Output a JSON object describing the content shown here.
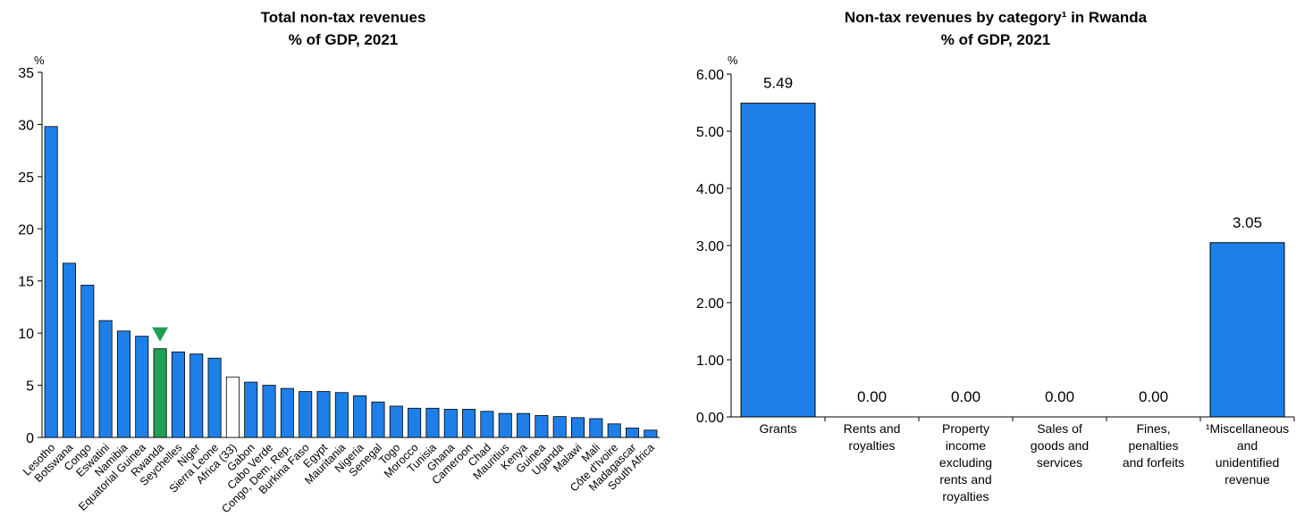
{
  "chart_data": [
    {
      "type": "bar",
      "title": "Total non-tax revenues",
      "subtitle": "% of GDP, 2021",
      "unit_label": "%",
      "ylim": [
        0,
        35
      ],
      "yticks": [
        "0",
        "5",
        "10",
        "15",
        "20",
        "25",
        "30",
        "35"
      ],
      "categories": [
        "Lesotho",
        "Botswana",
        "Congo",
        "Eswatini",
        "Namibia",
        "Equatorial Guinea",
        "Rwanda",
        "Seychelles",
        "Niger",
        "Sierra Leone",
        "Africa (33)",
        "Gabon",
        "Cabo Verde",
        "Congo, Dem. Rep.",
        "Burkina Faso",
        "Egypt",
        "Mauritania",
        "Nigeria",
        "Senegal",
        "Togo",
        "Morocco",
        "Tunisia",
        "Ghana",
        "Cameroon",
        "Chad",
        "Mauritius",
        "Kenya",
        "Guinea",
        "Uganda",
        "Malawi",
        "Mali",
        "Côte d'Ivoire",
        "Madagascar",
        "South Africa"
      ],
      "values": [
        29.8,
        16.7,
        14.6,
        11.2,
        10.2,
        9.7,
        8.5,
        8.2,
        8.0,
        7.6,
        5.8,
        5.3,
        5.0,
        4.7,
        4.4,
        4.4,
        4.3,
        4.0,
        3.4,
        3.0,
        2.8,
        2.8,
        2.7,
        2.7,
        2.5,
        2.3,
        2.3,
        2.1,
        2.0,
        1.9,
        1.8,
        1.3,
        0.9,
        0.7
      ],
      "highlight": "Rwanda",
      "average": "Africa (33)",
      "colors": {
        "default": "#1e7fe8",
        "highlight": "#1fa054",
        "average": "#ffffff",
        "border": "#000000",
        "marker": "#1fa054"
      },
      "grid": false
    },
    {
      "type": "bar",
      "title": "Non-tax revenues by category¹ in Rwanda",
      "subtitle": "% of GDP, 2021",
      "unit_label": "%",
      "ylim": [
        0,
        6
      ],
      "yticks": [
        "0.00",
        "1.00",
        "2.00",
        "3.00",
        "4.00",
        "5.00",
        "6.00"
      ],
      "categories": [
        [
          "Grants"
        ],
        [
          "Rents and",
          "royalties"
        ],
        [
          "Property",
          "income",
          "excluding",
          "rents and",
          "royalties"
        ],
        [
          "Sales of",
          "goods and",
          "services"
        ],
        [
          "Fines,",
          "penalties",
          "and forfeits"
        ],
        [
          "¹Miscellaneous",
          "and",
          "unidentified",
          "revenue"
        ]
      ],
      "values": [
        5.49,
        0.0,
        0.0,
        0.0,
        0.0,
        3.05
      ],
      "data_labels": [
        "5.49",
        "0.00",
        "0.00",
        "0.00",
        "0.00",
        "3.05"
      ],
      "colors": {
        "default": "#1e7fe8",
        "border": "#000000"
      },
      "grid": false
    }
  ]
}
